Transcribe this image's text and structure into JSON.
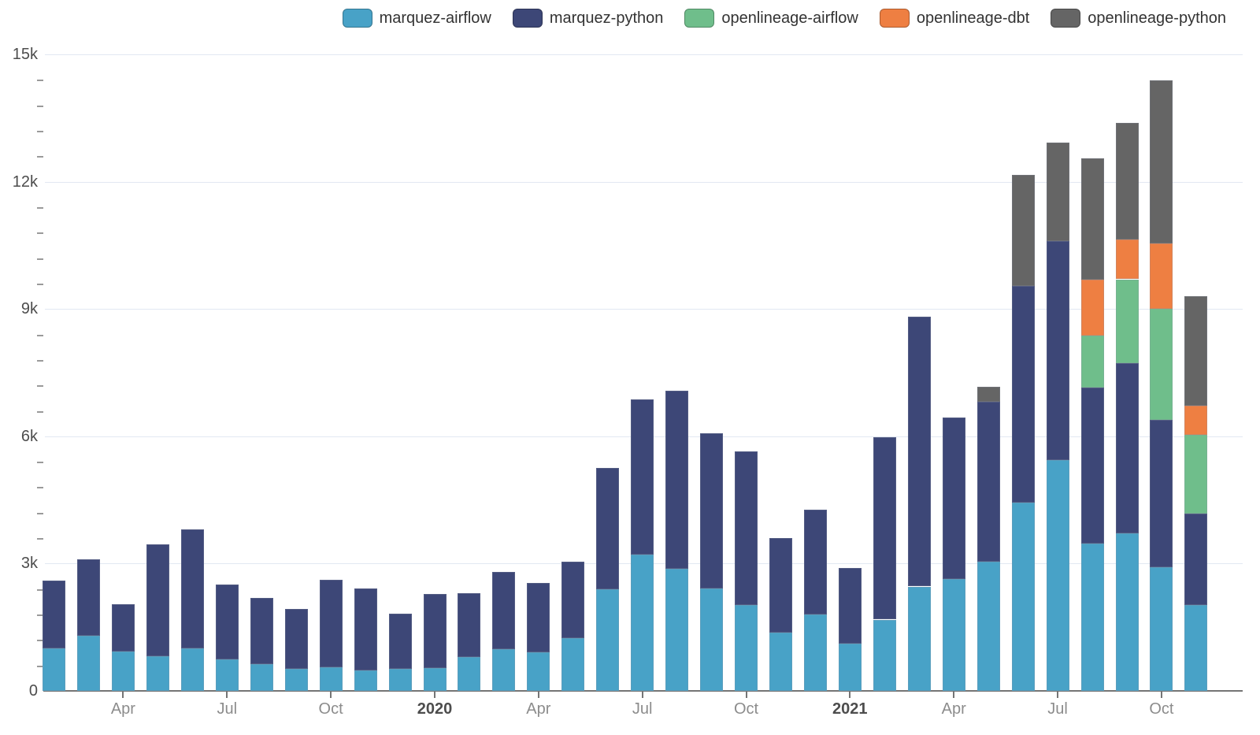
{
  "chart_data": {
    "type": "bar",
    "stacked": true,
    "title": "",
    "xlabel": "",
    "ylabel": "",
    "ylim": [
      0,
      15000
    ],
    "grid": true,
    "legend_position": "top-right",
    "y_major_ticks": [
      {
        "value": 0,
        "label": "0"
      },
      {
        "value": 3000,
        "label": "3k"
      },
      {
        "value": 6000,
        "label": "6k"
      },
      {
        "value": 9000,
        "label": "9k"
      },
      {
        "value": 12000,
        "label": "12k"
      },
      {
        "value": 15000,
        "label": "15k"
      }
    ],
    "y_minor_step": 600,
    "categories": [
      "Feb 2019",
      "Mar 2019",
      "Apr 2019",
      "May 2019",
      "Jun 2019",
      "Jul 2019",
      "Aug 2019",
      "Sep 2019",
      "Oct 2019",
      "Nov 2019",
      "Dec 2019",
      "Jan 2020",
      "Feb 2020",
      "Mar 2020",
      "Apr 2020",
      "May 2020",
      "Jun 2020",
      "Jul 2020",
      "Aug 2020",
      "Sep 2020",
      "Oct 2020",
      "Nov 2020",
      "Dec 2020",
      "Jan 2021",
      "Feb 2021",
      "Mar 2021",
      "Apr 2021",
      "May 2021",
      "Jun 2021",
      "Jul 2021",
      "Aug 2021",
      "Sep 2021",
      "Oct 2021",
      "Nov 2021"
    ],
    "x_ticks": [
      {
        "index": 2,
        "label": "Apr",
        "year": false
      },
      {
        "index": 5,
        "label": "Jul",
        "year": false
      },
      {
        "index": 8,
        "label": "Oct",
        "year": false
      },
      {
        "index": 11,
        "label": "2020",
        "year": true
      },
      {
        "index": 14,
        "label": "Apr",
        "year": false
      },
      {
        "index": 17,
        "label": "Jul",
        "year": false
      },
      {
        "index": 20,
        "label": "Oct",
        "year": false
      },
      {
        "index": 23,
        "label": "2021",
        "year": true
      },
      {
        "index": 26,
        "label": "Apr",
        "year": false
      },
      {
        "index": 29,
        "label": "Jul",
        "year": false
      },
      {
        "index": 32,
        "label": "Oct",
        "year": false
      }
    ],
    "series": [
      {
        "name": "marquez-airflow",
        "color": "#48a2c7",
        "values": [
          1000,
          1300,
          930,
          820,
          1000,
          750,
          630,
          520,
          560,
          480,
          520,
          540,
          800,
          990,
          910,
          1250,
          2400,
          3210,
          2880,
          2420,
          2030,
          1380,
          1810,
          1120,
          1680,
          2460,
          2630,
          3040,
          4430,
          5440,
          3480,
          3710,
          2920,
          2030
        ]
      },
      {
        "name": "marquez-python",
        "color": "#3d4777",
        "values": [
          1600,
          1800,
          1120,
          2640,
          2800,
          1750,
          1560,
          1420,
          2060,
          1930,
          1300,
          1750,
          1510,
          1820,
          1640,
          1790,
          2850,
          3660,
          4200,
          3650,
          3610,
          2220,
          2470,
          1770,
          4300,
          6350,
          3820,
          3780,
          5120,
          5160,
          3670,
          4020,
          3460,
          2140
        ]
      },
      {
        "name": "openlineage-airflow",
        "color": "#6fbe8b",
        "values": [
          0,
          0,
          0,
          0,
          0,
          0,
          0,
          0,
          0,
          0,
          0,
          0,
          0,
          0,
          0,
          0,
          0,
          0,
          0,
          0,
          0,
          0,
          0,
          0,
          0,
          0,
          0,
          0,
          0,
          0,
          1230,
          1970,
          2630,
          1860
        ]
      },
      {
        "name": "openlineage-dbt",
        "color": "#ee7f42",
        "values": [
          0,
          0,
          0,
          0,
          0,
          0,
          0,
          0,
          0,
          0,
          0,
          0,
          0,
          0,
          0,
          0,
          0,
          0,
          0,
          0,
          0,
          0,
          0,
          0,
          0,
          0,
          0,
          0,
          0,
          0,
          1320,
          930,
          1530,
          690
        ]
      },
      {
        "name": "openlineage-python",
        "color": "#656565",
        "values": [
          0,
          0,
          0,
          0,
          0,
          0,
          0,
          0,
          0,
          0,
          0,
          0,
          0,
          0,
          0,
          0,
          0,
          0,
          0,
          0,
          0,
          0,
          0,
          0,
          0,
          0,
          0,
          340,
          2610,
          2330,
          2850,
          2760,
          3840,
          2590
        ]
      }
    ]
  },
  "colors": {
    "background": "#ffffff",
    "grid_line": "#e2e8f2",
    "axis_line": "#757575",
    "minor_tick": "#9a9a9a",
    "y_label": "#4d4d4d",
    "x_label": "#8c8c8c",
    "x_label_year": "#4d4d4d",
    "legend_text": "#333333"
  }
}
